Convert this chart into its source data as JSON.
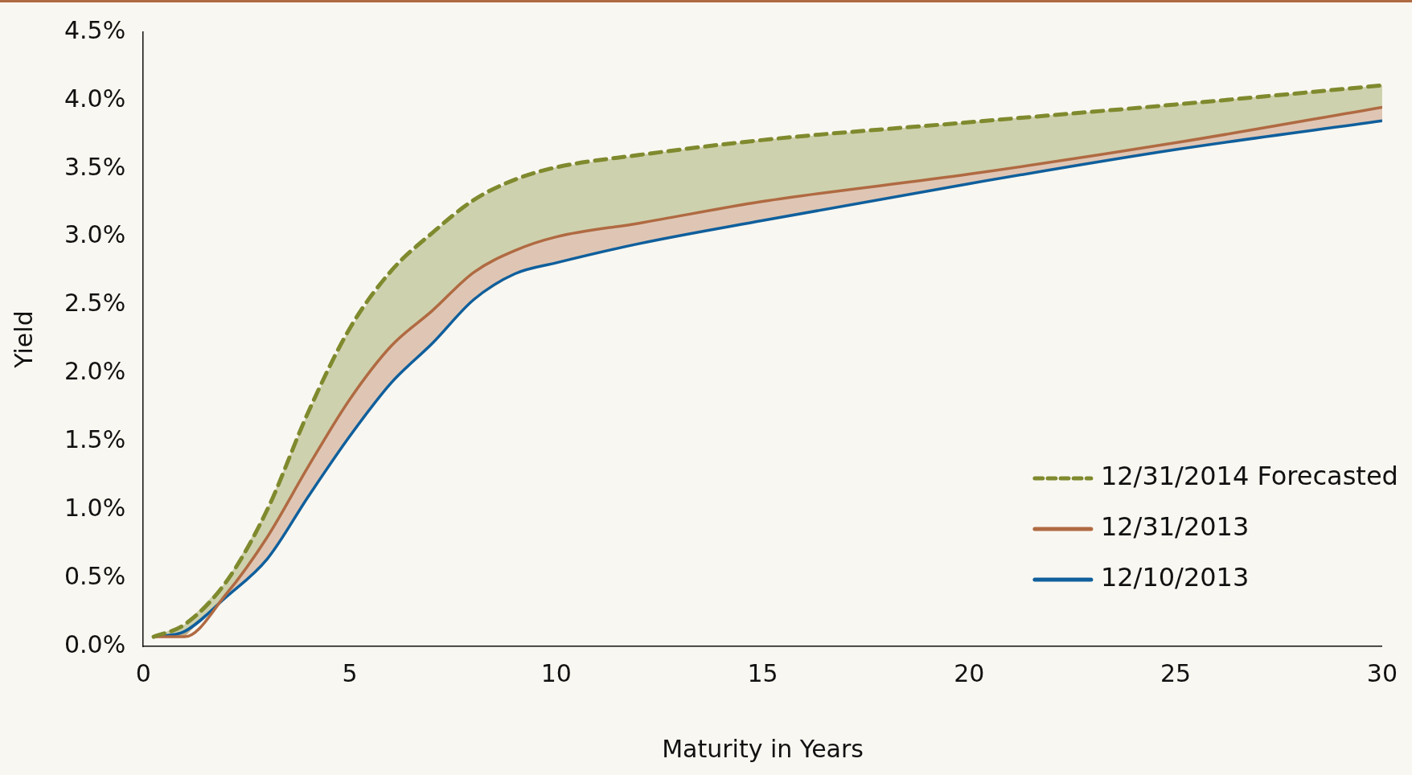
{
  "chart_data": {
    "type": "line",
    "xlabel": "Maturity in Years",
    "ylabel": "Yield",
    "xlim": [
      0,
      30
    ],
    "xticks": [
      0,
      5,
      10,
      15,
      20,
      25,
      30
    ],
    "ylim": [
      0,
      4.5
    ],
    "yticks": [
      {
        "value": 0,
        "label": "0.0%"
      },
      {
        "value": 0.5,
        "label": "0.5%"
      },
      {
        "value": 1,
        "label": "1.0%"
      },
      {
        "value": 1.5,
        "label": "1.5%"
      },
      {
        "value": 2,
        "label": "2.0%"
      },
      {
        "value": 2.5,
        "label": "2.5%"
      },
      {
        "value": 3,
        "label": "3.0%"
      },
      {
        "value": 3.5,
        "label": "3.5%"
      },
      {
        "value": 4,
        "label": "4.0%"
      },
      {
        "value": 4.5,
        "label": "4.5%"
      }
    ],
    "x": [
      0.25,
      1,
      2,
      3,
      4,
      5,
      6,
      7,
      8,
      9,
      10,
      12,
      15,
      20,
      25,
      30
    ],
    "grid": false,
    "legend": "bottom right",
    "marker": "none",
    "series": [
      {
        "name": "12/31/2014 Forecasted",
        "color": "#7f8a2e",
        "line_style": "dashed",
        "values": [
          0.07,
          0.16,
          0.47,
          1.0,
          1.72,
          2.33,
          2.75,
          3.03,
          3.27,
          3.42,
          3.51,
          3.6,
          3.71,
          3.84,
          3.97,
          4.11
        ],
        "lower": [
          0.07,
          0.07,
          0.38,
          0.8,
          1.32,
          1.81,
          2.2,
          2.46,
          2.74,
          2.9,
          3.0,
          3.1,
          3.26,
          3.46,
          3.69,
          3.95
        ],
        "upper": [
          0.07,
          0.16,
          0.47,
          1.0,
          1.72,
          2.33,
          2.75,
          3.03,
          3.27,
          3.42,
          3.51,
          3.6,
          3.71,
          3.84,
          3.97,
          4.11
        ]
      },
      {
        "name": "12/31/2013",
        "color": "#b06a42",
        "line_style": "solid",
        "values": [
          0.07,
          0.07,
          0.38,
          0.8,
          1.32,
          1.81,
          2.2,
          2.46,
          2.74,
          2.9,
          3.0,
          3.1,
          3.26,
          3.46,
          3.69,
          3.95
        ],
        "lower": [
          0.07,
          0.11,
          0.36,
          0.64,
          1.1,
          1.54,
          1.93,
          2.22,
          2.54,
          2.73,
          2.81,
          2.95,
          3.12,
          3.39,
          3.64,
          3.85
        ],
        "upper": [
          0.07,
          0.07,
          0.38,
          0.8,
          1.32,
          1.81,
          2.2,
          2.46,
          2.74,
          2.9,
          3.0,
          3.1,
          3.26,
          3.46,
          3.69,
          3.95
        ]
      },
      {
        "name": "12/10/2013",
        "color": "#0f5f9c",
        "line_style": "solid",
        "values": [
          0.07,
          0.11,
          0.36,
          0.64,
          1.1,
          1.54,
          1.93,
          2.22,
          2.54,
          2.73,
          2.81,
          2.95,
          3.12,
          3.39,
          3.64,
          3.85
        ]
      }
    ]
  }
}
